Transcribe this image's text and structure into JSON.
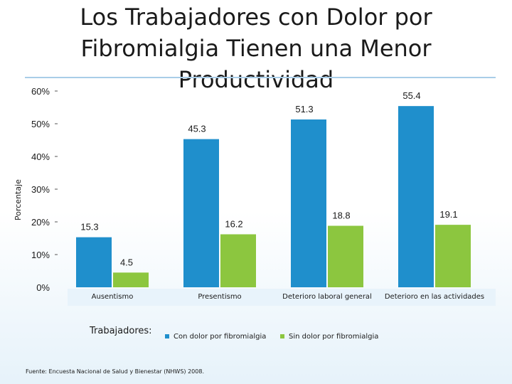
{
  "title": "Los Trabajadores con Dolor por Fibromialgia Tienen una Menor Productividad",
  "legend": {
    "title": "Trabajadores:",
    "items": [
      {
        "label": "Con dolor por fibromialgia",
        "color": "#1f8fcc"
      },
      {
        "label": "Sin dolor por fibromialgia",
        "color": "#8cc63f"
      }
    ]
  },
  "footer": "Fuente: Encuesta Nacional de Salud y Bienestar (NHWS) 2008.",
  "chart_data": {
    "type": "bar",
    "title": "Los Trabajadores con Dolor por Fibromialgia Tienen una Menor Productividad",
    "ylabel": "Porcentaje",
    "xlabel": "",
    "categories": [
      "Ausentismo",
      "Presentismo",
      "Deterioro laboral general",
      "Deterioro en las actividades"
    ],
    "series": [
      {
        "name": "Con dolor por fibromialgia",
        "values": [
          15.3,
          45.3,
          51.3,
          55.4
        ],
        "color": "#1f8fcc"
      },
      {
        "name": "Sin dolor por fibromialgia",
        "values": [
          4.5,
          16.2,
          18.8,
          19.1
        ],
        "color": "#8cc63f"
      }
    ],
    "yticks": [
      "0%",
      "10%",
      "20%",
      "30%",
      "40%",
      "50%",
      "60%"
    ],
    "ylim": [
      0,
      60
    ],
    "grid": false,
    "legend_position": "bottom"
  }
}
